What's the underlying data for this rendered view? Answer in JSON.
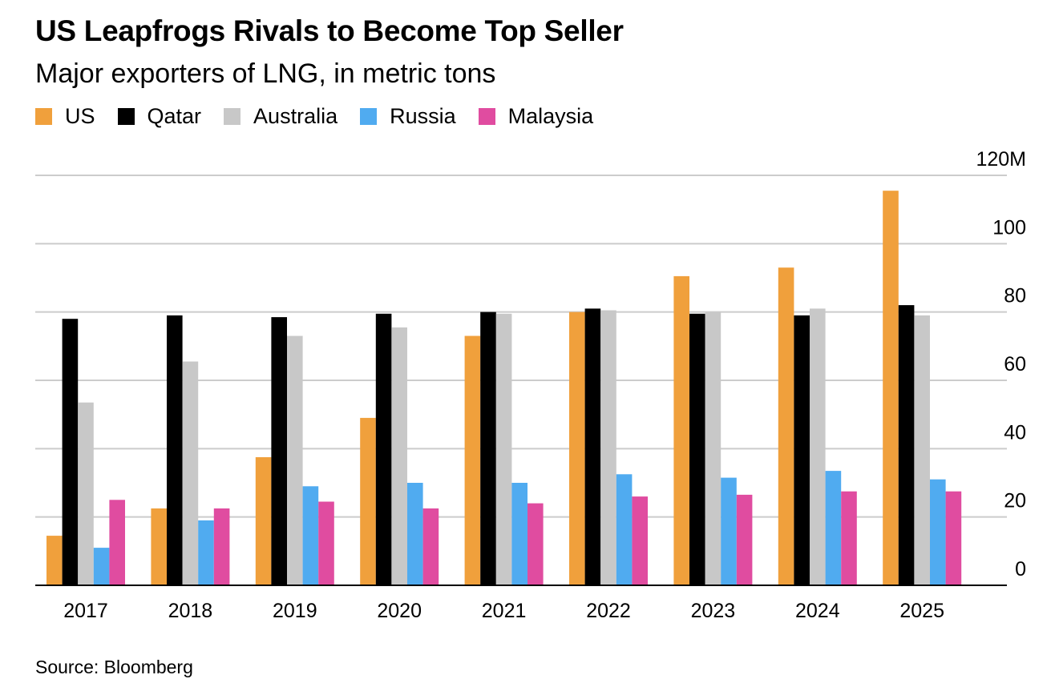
{
  "header": {
    "title": "US Leapfrogs Rivals to Become Top Seller",
    "subtitle": "Major exporters of LNG, in metric tons"
  },
  "footer": {
    "source": "Source: Bloomberg"
  },
  "chart_data": {
    "type": "bar",
    "title": "US Leapfrogs Rivals to Become Top Seller",
    "subtitle": "Major exporters of LNG, in metric tons",
    "xlabel": "",
    "ylabel": "",
    "ylim": [
      0,
      120
    ],
    "y_ticks": [
      0,
      20,
      40,
      60,
      80,
      100,
      120
    ],
    "y_tick_labels": [
      "0",
      "20",
      "40",
      "60",
      "80",
      "100",
      "120M"
    ],
    "y_axis_side": "right",
    "grid": true,
    "legend_position": "top-left",
    "categories": [
      "2017",
      "2018",
      "2019",
      "2020",
      "2021",
      "2022",
      "2023",
      "2024",
      "2025"
    ],
    "series": [
      {
        "name": "US",
        "color": "#F0A03C",
        "values": [
          14.5,
          22.5,
          37.5,
          49,
          73,
          80,
          90.5,
          93,
          115.5
        ]
      },
      {
        "name": "Qatar",
        "color": "#000000",
        "values": [
          78,
          79,
          78.5,
          79.5,
          80,
          81,
          79.5,
          79,
          82
        ]
      },
      {
        "name": "Australia",
        "color": "#C8C8C8",
        "values": [
          53.5,
          65.5,
          73,
          75.5,
          79.5,
          80.5,
          80,
          81,
          79
        ]
      },
      {
        "name": "Russia",
        "color": "#50ABF0",
        "values": [
          11,
          19,
          29,
          30,
          30,
          32.5,
          31.5,
          33.5,
          31
        ]
      },
      {
        "name": "Malaysia",
        "color": "#E04CA0",
        "values": [
          25,
          22.5,
          24.5,
          22.5,
          24,
          26,
          26.5,
          27.5,
          27.5
        ]
      }
    ],
    "source": "Source: Bloomberg"
  }
}
